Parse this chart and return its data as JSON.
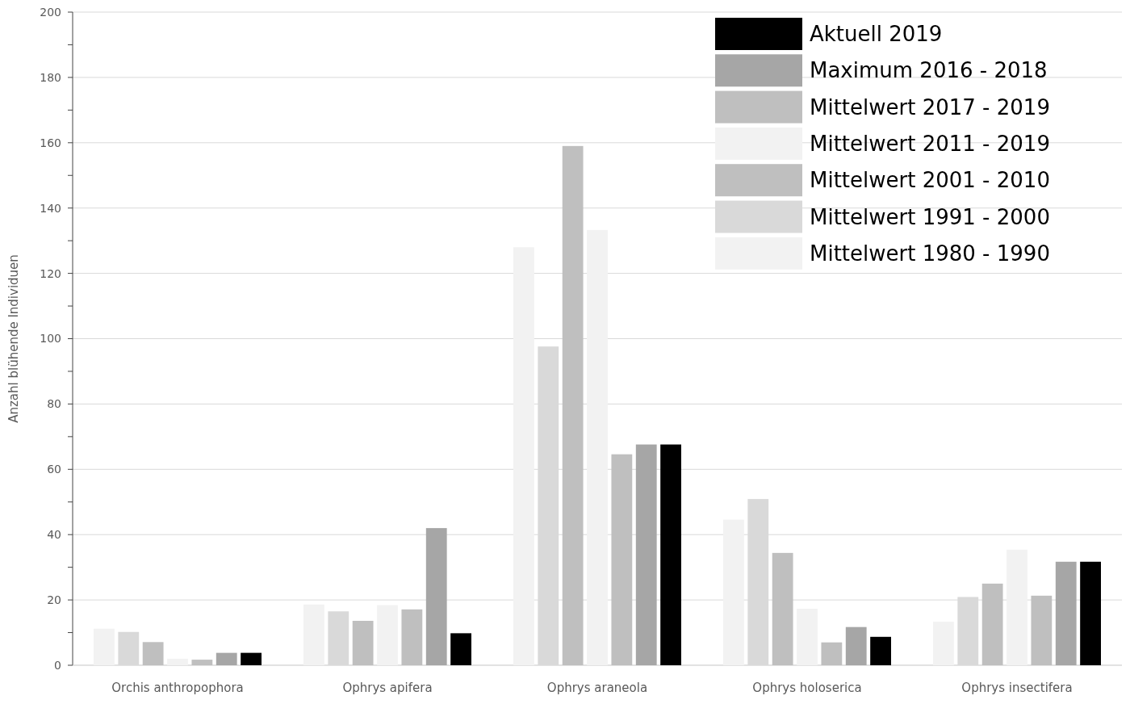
{
  "chart_data": {
    "type": "bar",
    "ylabel": "Anzahl blühende Individuen",
    "categories": [
      "Orchis anthropophora",
      "Ophrys apifera",
      "Ophrys araneola",
      "Ophrys holoserica",
      "Ophrys insectifera"
    ],
    "series": [
      {
        "name": "Mittelwert 1980 - 1990",
        "color": "#f2f2f2",
        "values": [
          11.2,
          18.6,
          128,
          44.6,
          13.3
        ]
      },
      {
        "name": "Mittelwert 1991 - 2000",
        "color": "#d9d9d9",
        "values": [
          10.2,
          16.5,
          97.6,
          50.9,
          20.9
        ]
      },
      {
        "name": "Mittelwert 2001 - 2010",
        "color": "#bfbfbf",
        "values": [
          7.1,
          13.6,
          159,
          34.4,
          25
        ]
      },
      {
        "name": "Mittelwert 2011 - 2019",
        "color": "#f2f2f2",
        "values": [
          2,
          18.4,
          133.3,
          17.3,
          35.4
        ]
      },
      {
        "name": "Mittelwert 2017 - 2019",
        "color": "#bfbfbf",
        "values": [
          1.7,
          17.1,
          64.6,
          7,
          21.3
        ]
      },
      {
        "name": "Maximum 2016 - 2018",
        "color": "#a6a6a6",
        "values": [
          3.8,
          42,
          67.6,
          11.7,
          31.7
        ]
      },
      {
        "name": "Aktuell 2019",
        "color": "#000000",
        "values": [
          3.8,
          9.8,
          67.6,
          8.7,
          31.7
        ]
      }
    ],
    "ylim": [
      0,
      200
    ],
    "yticks": [
      0,
      {
        "value": 10,
        "label": null
      },
      20,
      {
        "value": 30,
        "label": null
      },
      40,
      {
        "value": 50,
        "label": null
      },
      60,
      {
        "value": 70,
        "label": null
      },
      80,
      {
        "value": 90,
        "label": null
      },
      100,
      {
        "value": 110,
        "label": null
      },
      120,
      {
        "value": 130,
        "label": null
      },
      140,
      {
        "value": 150,
        "label": null
      },
      160,
      {
        "value": 170,
        "label": null
      },
      180,
      {
        "value": 190,
        "label": null
      },
      200
    ],
    "grid": "y",
    "legend": "top right"
  }
}
